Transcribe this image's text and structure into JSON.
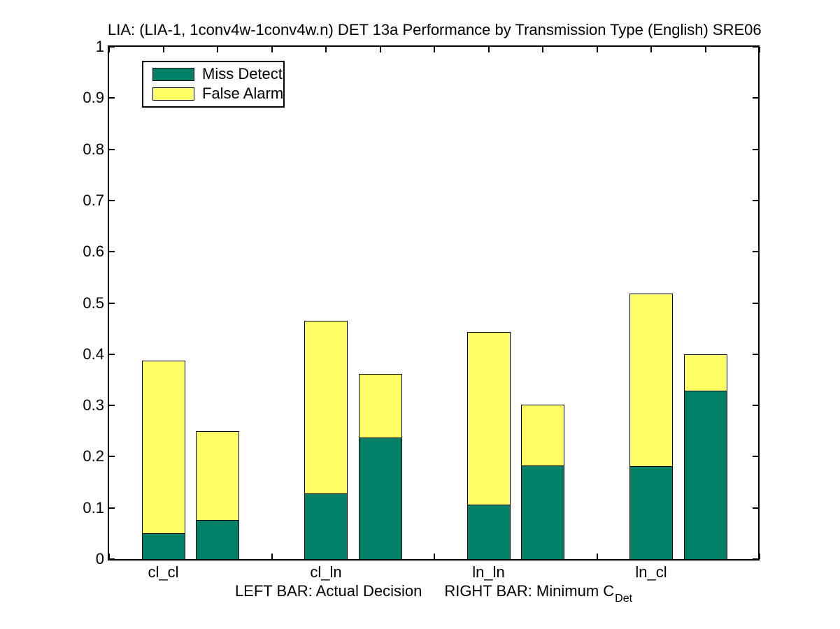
{
  "figure": {
    "title": "LIA: (LIA-1, 1conv4w-1conv4w.n) DET 13a Performance by Transmission Type (English) SRE06"
  },
  "legend": {
    "items": [
      {
        "label": "Miss Detect",
        "color": "#008066"
      },
      {
        "label": "False Alarm",
        "color": "#FFFF66"
      }
    ]
  },
  "x_axis": {
    "categories": [
      "cl_cl",
      "cl_ln",
      "ln_ln",
      "ln_cl"
    ],
    "caption_left": "LEFT BAR: Actual Decision",
    "caption_right": "RIGHT BAR: Minimum C",
    "caption_subscript": "Det"
  },
  "y_axis": {
    "tick_labels": [
      "0",
      "0.1",
      "0.2",
      "0.3",
      "0.4",
      "0.5",
      "0.6",
      "0.7",
      "0.8",
      "0.9",
      "1"
    ]
  },
  "chart_data": {
    "type": "bar",
    "stacked": true,
    "title": "LIA: (LIA-1, 1conv4w-1conv4w.n) DET 13a Performance by Transmission Type (English) SRE06",
    "categories": [
      "cl_cl",
      "cl_ln",
      "ln_ln",
      "ln_cl"
    ],
    "bar_pair_meaning": {
      "left": "Actual Decision",
      "right": "Minimum C_Det"
    },
    "series": [
      {
        "name": "Miss Detect",
        "color": "#008066",
        "actual_decision": [
          0.051,
          0.128,
          0.107,
          0.182
        ],
        "minimum_cdet": [
          0.077,
          0.237,
          0.183,
          0.329
        ]
      },
      {
        "name": "False Alarm",
        "color": "#FFFF66",
        "actual_decision": [
          0.337,
          0.337,
          0.337,
          0.337
        ],
        "minimum_cdet": [
          0.173,
          0.124,
          0.118,
          0.071
        ]
      }
    ],
    "stacked_totals": {
      "actual_decision": [
        0.388,
        0.465,
        0.444,
        0.519
      ],
      "minimum_cdet": [
        0.25,
        0.361,
        0.301,
        0.4
      ]
    },
    "ylim": [
      0,
      1
    ],
    "yticks": [
      0,
      0.1,
      0.2,
      0.3,
      0.4,
      0.5,
      0.6,
      0.7,
      0.8,
      0.9,
      1
    ],
    "grid": false,
    "legend_position": "top-left"
  }
}
